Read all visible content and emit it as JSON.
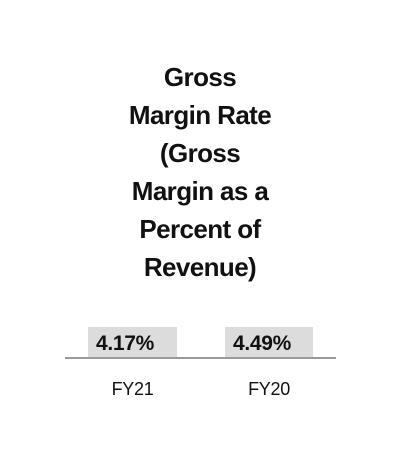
{
  "title_lines": [
    "Gross",
    "Margin Rate",
    "(Gross",
    "Margin as a",
    "Percent of",
    "Revenue)"
  ],
  "columns": [
    {
      "value": "4.17%",
      "label": "FY21"
    },
    {
      "value": "4.49%",
      "label": "FY20"
    }
  ]
}
